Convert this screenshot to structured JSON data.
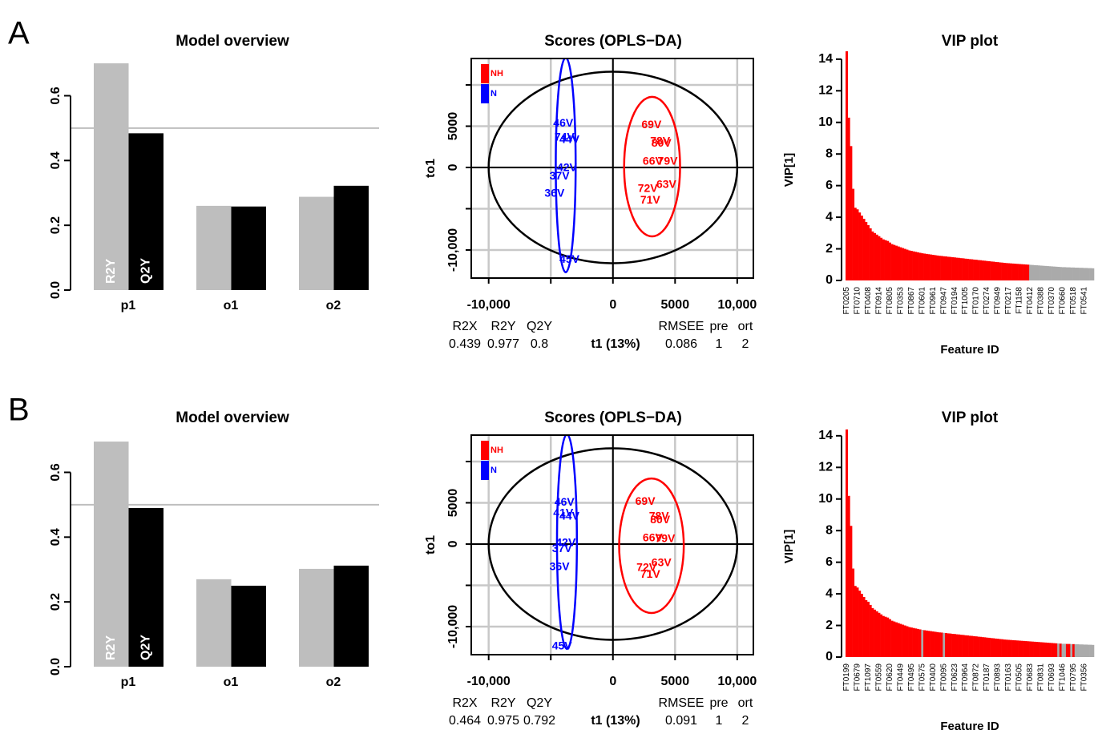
{
  "panel_labels": [
    "A",
    "B"
  ],
  "chart_data": [
    {
      "type": "bar",
      "title": "Model overview",
      "categories": [
        "p1",
        "o1",
        "o2"
      ],
      "series": [
        {
          "name": "R2Y",
          "color": "#bebebe",
          "values": [
            0.7,
            0.26,
            0.288
          ]
        },
        {
          "name": "Q2Y",
          "color": "#000000",
          "values": [
            0.484,
            0.258,
            0.322
          ]
        }
      ],
      "ylim": [
        0,
        0.71
      ],
      "yticks": [
        {
          "value": 0,
          "label": "0.0"
        },
        0.2,
        0.4,
        0.6
      ],
      "reference_line": 0.5
    },
    {
      "type": "scatter",
      "title": "Scores (OPLS−DA)",
      "xlabel": "t1 (13%)",
      "ylabel": "to1",
      "series": [
        {
          "name": "NH",
          "color": "#ff0000",
          "labels": [
            "69V",
            "78V",
            "80V",
            "66V",
            "79V",
            "72V",
            "63V",
            "71V"
          ],
          "x": [
            3100,
            3800,
            3900,
            3200,
            4400,
            2800,
            4300,
            3000
          ],
          "values": [
            5100,
            3100,
            2900,
            700,
            700,
            -2600,
            -2100,
            -4000
          ]
        },
        {
          "name": "N",
          "color": "#0000ff",
          "labels": [
            "46V",
            "74V",
            "44V",
            "42V",
            "37V",
            "36V",
            "45V"
          ],
          "x": [
            -4000,
            -3900,
            -3500,
            -3700,
            -4300,
            -4700,
            -3500
          ],
          "values": [
            5300,
            3600,
            3300,
            -100,
            -1100,
            -3200,
            -11200
          ]
        }
      ],
      "ellipses": [
        {
          "color": "#000000",
          "cx": 0,
          "cy": 0,
          "rx": 10000,
          "ry": 11600
        },
        {
          "color": "#0000ff",
          "cx": -3800,
          "cy": 300,
          "rx": 800,
          "ry": 13000
        },
        {
          "color": "#ff0000",
          "cx": 3150,
          "cy": 100,
          "rx": 2250,
          "ry": 8450
        }
      ],
      "xlim": [
        -11400,
        11300
      ],
      "ylim": [
        -13400,
        13200
      ],
      "xticks": [
        {
          "value": -10000,
          "label": "-10,000"
        },
        {
          "value": -5000,
          "label": null
        },
        0,
        5000,
        {
          "value": 10000,
          "label": "10,000"
        }
      ],
      "yticks": [
        {
          "value": -10000,
          "label": "-10,000"
        },
        {
          "value": -5000,
          "label": null
        },
        0,
        5000,
        {
          "value": 10000,
          "label": null
        }
      ],
      "stats": {
        "labels": [
          "R2X",
          "R2Y",
          "Q2Y",
          "RMSEE",
          "pre",
          "ort"
        ],
        "values": [
          0.439,
          0.977,
          0.8,
          0.086,
          1,
          2
        ]
      }
    },
    {
      "type": "bar",
      "title": "VIP plot",
      "xlabel": "Feature ID",
      "ylabel": "VIP[1]",
      "categories": [
        "FT0205",
        null,
        null,
        null,
        null,
        "FT0710",
        null,
        null,
        null,
        null,
        "FT0408",
        null,
        null,
        null,
        null,
        "FT0914",
        null,
        null,
        null,
        null,
        "FT0805",
        null,
        null,
        null,
        null,
        "FT0353",
        null,
        null,
        null,
        null,
        "FT0867",
        null,
        null,
        null,
        null,
        "FT0601",
        null,
        null,
        null,
        null,
        "FT0961",
        null,
        null,
        null,
        null,
        "FT0947",
        null,
        null,
        null,
        null,
        "FT0194",
        null,
        null,
        null,
        null,
        "FT1005",
        null,
        null,
        null,
        null,
        "FT0170",
        null,
        null,
        null,
        null,
        "FT0274",
        null,
        null,
        null,
        null,
        "FT0949",
        null,
        null,
        null,
        null,
        "FT0217",
        null,
        null,
        null,
        null,
        "FT1158",
        null,
        null,
        null,
        null,
        "FT0412",
        null,
        null,
        null,
        null,
        "FT0388",
        null,
        null,
        null,
        null,
        "FT0370",
        null,
        null,
        null,
        null,
        "FT0660",
        null,
        null,
        null,
        null,
        "FT0518",
        null,
        null,
        null,
        null,
        "FT0541",
        null,
        null,
        null,
        null
      ],
      "values": [
        14.5,
        10.3,
        8.5,
        5.8,
        4.6,
        4.5,
        4.3,
        4.1,
        3.9,
        3.7,
        3.5,
        3.3,
        3.1,
        3.0,
        2.9,
        2.8,
        2.7,
        2.6,
        2.55,
        2.5,
        2.4,
        2.3,
        2.25,
        2.2,
        2.15,
        2.1,
        2.05,
        2.0,
        1.95,
        1.9,
        1.87,
        1.84,
        1.81,
        1.78,
        1.75,
        1.72,
        1.7,
        1.68,
        1.66,
        1.64,
        1.62,
        1.6,
        1.58,
        1.56,
        1.55,
        1.53,
        1.52,
        1.5,
        1.49,
        1.47,
        1.46,
        1.44,
        1.43,
        1.41,
        1.4,
        1.38,
        1.37,
        1.35,
        1.34,
        1.32,
        1.31,
        1.29,
        1.28,
        1.26,
        1.25,
        1.23,
        1.22,
        1.2,
        1.19,
        1.17,
        1.16,
        1.14,
        1.13,
        1.11,
        1.1,
        1.09,
        1.08,
        1.07,
        1.06,
        1.05,
        1.04,
        1.03,
        1.02,
        1.01,
        1.0,
        0.99,
        0.98,
        0.97,
        0.96,
        0.95,
        0.94,
        0.93,
        0.92,
        0.91,
        0.9,
        0.89,
        0.88,
        0.87,
        0.86,
        0.85,
        0.84,
        0.84,
        0.83,
        0.83,
        0.82,
        0.82,
        0.81,
        0.81,
        0.8,
        0.8,
        0.79,
        0.79,
        0.78,
        0.78,
        0.77
      ],
      "bar_colors": [
        "red",
        "red",
        "red",
        "red",
        "red",
        "red",
        "red",
        "red",
        "red",
        "red",
        "red",
        "red",
        "red",
        "red",
        "red",
        "red",
        "red",
        "red",
        "red",
        "red",
        "red",
        "red",
        "red",
        "red",
        "red",
        "red",
        "red",
        "red",
        "red",
        "red",
        "red",
        "red",
        "red",
        "red",
        "red",
        "red",
        "red",
        "red",
        "red",
        "red",
        "red",
        "red",
        "red",
        "red",
        "red",
        "red",
        "red",
        "red",
        "red",
        "red",
        "red",
        "red",
        "red",
        "red",
        "red",
        "red",
        "red",
        "red",
        "red",
        "red",
        "red",
        "red",
        "red",
        "red",
        "red",
        "red",
        "red",
        "red",
        "red",
        "red",
        "red",
        "red",
        "red",
        "red",
        "red",
        "red",
        "red",
        "red",
        "red",
        "red",
        "red",
        "red",
        "red",
        "red",
        "red",
        "#aaaaaa",
        "#aaaaaa",
        "#aaaaaa",
        "#aaaaaa",
        "#aaaaaa",
        "#aaaaaa",
        "#aaaaaa",
        "#aaaaaa",
        "#aaaaaa",
        "#aaaaaa",
        "#aaaaaa",
        "#aaaaaa",
        "#aaaaaa",
        "#aaaaaa",
        "#aaaaaa",
        "#aaaaaa",
        "#aaaaaa",
        "#aaaaaa",
        "#aaaaaa",
        "#aaaaaa",
        "#aaaaaa",
        "#aaaaaa",
        "#aaaaaa",
        "#aaaaaa",
        "#aaaaaa",
        "#aaaaaa",
        "#aaaaaa",
        "#aaaaaa",
        "#aaaaaa",
        "#aaaaaa"
      ],
      "ylim": [
        0,
        14.6
      ],
      "yticks": [
        0,
        2,
        4,
        6,
        8,
        10,
        12,
        14
      ]
    },
    {
      "type": "bar",
      "title": "Model overview",
      "categories": [
        "p1",
        "o1",
        "o2"
      ],
      "series": [
        {
          "name": "R2Y",
          "color": "#bebebe",
          "values": [
            0.695,
            0.27,
            0.302
          ]
        },
        {
          "name": "Q2Y",
          "color": "#000000",
          "values": [
            0.49,
            0.25,
            0.312
          ]
        }
      ],
      "ylim": [
        0,
        0.71
      ],
      "yticks": [
        {
          "value": 0,
          "label": "0.0"
        },
        0.2,
        0.4,
        0.6
      ],
      "reference_line": 0.5
    },
    {
      "type": "scatter",
      "title": "Scores (OPLS−DA)",
      "xlabel": "t1 (13%)",
      "ylabel": "to1",
      "series": [
        {
          "name": "NH",
          "color": "#ff0000",
          "labels": [
            "69V",
            "78V",
            "80V",
            "66V",
            "79V",
            "72V",
            "63V",
            "71V"
          ],
          "x": [
            2600,
            3700,
            3800,
            3200,
            4200,
            2700,
            3900,
            3000
          ],
          "values": [
            5100,
            3300,
            2900,
            700,
            600,
            -2900,
            -2300,
            -3700
          ]
        },
        {
          "name": "N",
          "color": "#0000ff",
          "labels": [
            "46V",
            "41V",
            "44V",
            "42V",
            "37V",
            "36V",
            "45V"
          ],
          "x": [
            -3900,
            -4000,
            -3500,
            -3800,
            -4100,
            -4300,
            -4100
          ],
          "values": [
            5000,
            3700,
            3300,
            100,
            -600,
            -2800,
            -12400
          ]
        }
      ],
      "ellipses": [
        {
          "color": "#000000",
          "cx": 0,
          "cy": 0,
          "rx": 10000,
          "ry": 11600
        },
        {
          "color": "#0000ff",
          "cx": -3700,
          "cy": 300,
          "rx": 800,
          "ry": 13000
        },
        {
          "color": "#ff0000",
          "cx": 3100,
          "cy": -200,
          "rx": 2600,
          "ry": 8150
        }
      ],
      "xlim": [
        -11400,
        11300
      ],
      "ylim": [
        -13400,
        13200
      ],
      "xticks": [
        {
          "value": -10000,
          "label": "-10,000"
        },
        {
          "value": -5000,
          "label": null
        },
        0,
        5000,
        {
          "value": 10000,
          "label": "10,000"
        }
      ],
      "yticks": [
        {
          "value": -10000,
          "label": "-10,000"
        },
        {
          "value": -5000,
          "label": null
        },
        0,
        5000,
        {
          "value": 10000,
          "label": null
        }
      ],
      "stats": {
        "labels": [
          "R2X",
          "R2Y",
          "Q2Y",
          "RMSEE",
          "pre",
          "ort"
        ],
        "values": [
          0.464,
          0.975,
          0.792,
          0.091,
          1,
          2
        ]
      }
    },
    {
      "type": "bar",
      "title": "VIP plot",
      "xlabel": "Feature ID",
      "ylabel": "VIP[1]",
      "categories": [
        "FT0199",
        null,
        null,
        null,
        null,
        "FT0679",
        null,
        null,
        null,
        null,
        "FT1097",
        null,
        null,
        null,
        null,
        "FT0559",
        null,
        null,
        null,
        null,
        "FT0620",
        null,
        null,
        null,
        null,
        "FT0449",
        null,
        null,
        null,
        null,
        "FT0495",
        null,
        null,
        null,
        null,
        "FT0575",
        null,
        null,
        null,
        null,
        "FT0400",
        null,
        null,
        null,
        null,
        "FT0095",
        null,
        null,
        null,
        null,
        "FT0623",
        null,
        null,
        null,
        null,
        "FT0964",
        null,
        null,
        null,
        null,
        "FT0872",
        null,
        null,
        null,
        null,
        "FT0187",
        null,
        null,
        null,
        null,
        "FT0893",
        null,
        null,
        null,
        null,
        "FT0163",
        null,
        null,
        null,
        null,
        "FT0505",
        null,
        null,
        null,
        null,
        "FT0683",
        null,
        null,
        null,
        null,
        "FT0831",
        null,
        null,
        null,
        null,
        "FT0693",
        null,
        null,
        null,
        null,
        "FT1046",
        null,
        null,
        null,
        null,
        "FT0795",
        null,
        null,
        null,
        null,
        "FT0356",
        null,
        null,
        null,
        null
      ],
      "values": [
        14.4,
        10.2,
        8.3,
        5.6,
        4.5,
        4.4,
        4.2,
        4.0,
        3.8,
        3.6,
        3.5,
        3.3,
        3.1,
        3.0,
        2.9,
        2.8,
        2.7,
        2.6,
        2.55,
        2.5,
        2.4,
        2.3,
        2.25,
        2.2,
        2.15,
        2.1,
        2.05,
        2.0,
        1.95,
        1.9,
        1.87,
        1.84,
        1.81,
        1.78,
        1.75,
        1.72,
        1.7,
        1.68,
        1.66,
        1.64,
        1.62,
        1.6,
        1.58,
        1.56,
        1.55,
        1.53,
        1.52,
        1.5,
        1.49,
        1.47,
        1.46,
        1.44,
        1.43,
        1.41,
        1.4,
        1.38,
        1.37,
        1.35,
        1.34,
        1.32,
        1.31,
        1.29,
        1.28,
        1.26,
        1.25,
        1.23,
        1.22,
        1.2,
        1.19,
        1.17,
        1.16,
        1.14,
        1.13,
        1.11,
        1.1,
        1.09,
        1.08,
        1.07,
        1.06,
        1.05,
        1.04,
        1.03,
        1.02,
        1.01,
        1.0,
        0.99,
        0.98,
        0.97,
        0.96,
        0.95,
        0.94,
        0.93,
        0.92,
        0.91,
        0.9,
        0.89,
        0.88,
        0.87,
        0.86,
        0.85,
        0.84,
        0.84,
        0.83,
        0.83,
        0.82,
        0.82,
        0.81,
        0.81,
        0.8,
        0.8,
        0.79,
        0.79,
        0.78,
        0.78,
        0.77
      ],
      "bar_colors": [
        "red",
        "red",
        "red",
        "red",
        "red",
        "red",
        "red",
        "red",
        "red",
        "red",
        "red",
        "red",
        "red",
        "red",
        "red",
        "red",
        "red",
        "red",
        "red",
        "red",
        "red",
        "red",
        "red",
        "red",
        "red",
        "red",
        "red",
        "red",
        "red",
        "red",
        "red",
        "red",
        "red",
        "red",
        "red",
        "#aaaaaa",
        "red",
        "red",
        "red",
        "red",
        "red",
        "red",
        "red",
        "red",
        "red",
        "#aaaaaa",
        "red",
        "red",
        "red",
        "red",
        "red",
        "red",
        "red",
        "red",
        "red",
        "red",
        "red",
        "red",
        "red",
        "red",
        "red",
        "red",
        "red",
        "red",
        "red",
        "red",
        "red",
        "red",
        "red",
        "red",
        "red",
        "red",
        "red",
        "red",
        "red",
        "red",
        "red",
        "red",
        "red",
        "red",
        "red",
        "red",
        "red",
        "red",
        "red",
        "red",
        "red",
        "red",
        "red",
        "red",
        "red",
        "red",
        "red",
        "red",
        "red",
        "red",
        "red",
        "red",
        "#aaaaaa",
        "red",
        "#aaaaaa",
        "#aaaaaa",
        "red",
        "red",
        "#aaaaaa",
        "red",
        "#aaaaaa",
        "#aaaaaa",
        "#aaaaaa",
        "#aaaaaa",
        "#aaaaaa",
        "#aaaaaa",
        "#aaaaaa",
        "#aaaaaa",
        "#aaaaaa"
      ],
      "ylim": [
        0,
        14.6
      ],
      "yticks": [
        0,
        2,
        4,
        6,
        8,
        10,
        12,
        14
      ]
    }
  ]
}
